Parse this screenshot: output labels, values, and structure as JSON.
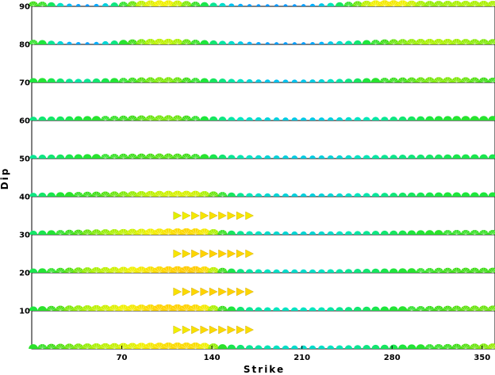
{
  "chart_data": {
    "type": "scatter",
    "title": "",
    "xlabel": "Strike",
    "ylabel": "Dip",
    "xlim": [
      0,
      360
    ],
    "ylim": [
      0,
      90
    ],
    "xticks": [
      70,
      140,
      210,
      280,
      350
    ],
    "yticks": [
      10,
      20,
      30,
      40,
      50,
      60,
      70,
      80,
      90
    ],
    "grid": "horizontal lines at each dip row",
    "legend": "none",
    "rows": [
      {
        "dip": 0,
        "fit": [
          0.55,
          0.58,
          0.62,
          0.64,
          0.66,
          0.68,
          0.7,
          0.72,
          0.74,
          0.75,
          0.77,
          0.78,
          0.8,
          0.82,
          0.84,
          0.85,
          0.86,
          0.86,
          0.85,
          0.8,
          0.7,
          0.55,
          0.48,
          0.44,
          0.4,
          0.38,
          0.36,
          0.34,
          0.33,
          0.32,
          0.32,
          0.32,
          0.33,
          0.34,
          0.36,
          0.38,
          0.4,
          0.42,
          0.44,
          0.46,
          0.48,
          0.5,
          0.52,
          0.54,
          0.56,
          0.58,
          0.6,
          0.62,
          0.64,
          0.66,
          0.68,
          0.7
        ]
      },
      {
        "dip": 5,
        "fit": [
          0,
          0,
          0,
          0,
          0,
          0,
          0,
          0,
          0,
          0,
          0,
          0,
          0,
          0,
          0,
          0,
          0.8,
          0.82,
          0.84,
          0.86,
          0.86,
          0.86,
          0.86,
          0.86,
          0.85,
          0,
          0,
          0,
          0,
          0,
          0,
          0,
          0,
          0,
          0,
          0,
          0,
          0,
          0,
          0,
          0,
          0,
          0,
          0,
          0,
          0,
          0,
          0,
          0,
          0,
          0,
          0
        ]
      },
      {
        "dip": 10,
        "fit": [
          0.5,
          0.55,
          0.6,
          0.64,
          0.68,
          0.7,
          0.72,
          0.74,
          0.76,
          0.78,
          0.8,
          0.82,
          0.84,
          0.86,
          0.88,
          0.88,
          0.88,
          0.88,
          0.86,
          0.82,
          0.72,
          0.6,
          0.5,
          0.44,
          0.4,
          0.38,
          0.36,
          0.35,
          0.34,
          0.34,
          0.34,
          0.35,
          0.36,
          0.38,
          0.4,
          0.42,
          0.44,
          0.46,
          0.48,
          0.5,
          0.52,
          0.54,
          0.56,
          0.58,
          0.6,
          0.62,
          0.63,
          0.64,
          0.65,
          0.66,
          0.66,
          0.66
        ]
      },
      {
        "dip": 15,
        "fit": [
          0,
          0,
          0,
          0,
          0,
          0,
          0,
          0,
          0,
          0,
          0,
          0,
          0,
          0,
          0,
          0,
          0.84,
          0.86,
          0.87,
          0.88,
          0.88,
          0.88,
          0.88,
          0.88,
          0.87,
          0,
          0,
          0,
          0,
          0,
          0,
          0,
          0,
          0,
          0,
          0,
          0,
          0,
          0,
          0,
          0,
          0,
          0,
          0,
          0,
          0,
          0,
          0,
          0,
          0,
          0,
          0
        ]
      },
      {
        "dip": 20,
        "fit": [
          0.48,
          0.52,
          0.56,
          0.6,
          0.64,
          0.67,
          0.7,
          0.72,
          0.74,
          0.76,
          0.78,
          0.8,
          0.82,
          0.84,
          0.86,
          0.88,
          0.89,
          0.9,
          0.9,
          0.86,
          0.74,
          0.6,
          0.48,
          0.42,
          0.38,
          0.36,
          0.34,
          0.33,
          0.32,
          0.32,
          0.32,
          0.33,
          0.34,
          0.36,
          0.38,
          0.4,
          0.42,
          0.44,
          0.46,
          0.48,
          0.5,
          0.52,
          0.54,
          0.56,
          0.58,
          0.6,
          0.61,
          0.62,
          0.62,
          0.62,
          0.62,
          0.62
        ]
      },
      {
        "dip": 25,
        "fit": [
          0,
          0,
          0,
          0,
          0,
          0,
          0,
          0,
          0,
          0,
          0,
          0,
          0,
          0,
          0,
          0,
          0.83,
          0.85,
          0.87,
          0.88,
          0.88,
          0.88,
          0.88,
          0.87,
          0.86,
          0,
          0,
          0,
          0,
          0,
          0,
          0,
          0,
          0,
          0,
          0,
          0,
          0,
          0,
          0,
          0,
          0,
          0,
          0,
          0,
          0,
          0,
          0,
          0,
          0,
          0,
          0
        ]
      },
      {
        "dip": 30,
        "fit": [
          0.45,
          0.48,
          0.52,
          0.56,
          0.6,
          0.63,
          0.66,
          0.68,
          0.7,
          0.72,
          0.74,
          0.76,
          0.78,
          0.8,
          0.82,
          0.84,
          0.86,
          0.87,
          0.86,
          0.82,
          0.72,
          0.58,
          0.46,
          0.4,
          0.36,
          0.34,
          0.32,
          0.31,
          0.3,
          0.3,
          0.3,
          0.3,
          0.31,
          0.32,
          0.34,
          0.36,
          0.38,
          0.4,
          0.42,
          0.44,
          0.46,
          0.48,
          0.5,
          0.52,
          0.54,
          0.55,
          0.56,
          0.57,
          0.58,
          0.58,
          0.58,
          0.58
        ]
      },
      {
        "dip": 35,
        "fit": [
          0,
          0,
          0,
          0,
          0,
          0,
          0,
          0,
          0,
          0,
          0,
          0,
          0,
          0,
          0,
          0,
          0.78,
          0.8,
          0.82,
          0.83,
          0.84,
          0.84,
          0.84,
          0.83,
          0.82,
          0,
          0,
          0,
          0,
          0,
          0,
          0,
          0,
          0,
          0,
          0,
          0,
          0,
          0,
          0,
          0,
          0,
          0,
          0,
          0,
          0,
          0,
          0,
          0,
          0,
          0,
          0
        ]
      },
      {
        "dip": 40,
        "fit": [
          0.42,
          0.45,
          0.48,
          0.52,
          0.55,
          0.58,
          0.6,
          0.62,
          0.64,
          0.66,
          0.68,
          0.7,
          0.72,
          0.74,
          0.75,
          0.76,
          0.77,
          0.77,
          0.76,
          0.72,
          0.66,
          0.56,
          0.46,
          0.4,
          0.36,
          0.33,
          0.31,
          0.3,
          0.29,
          0.28,
          0.28,
          0.28,
          0.29,
          0.3,
          0.31,
          0.33,
          0.35,
          0.37,
          0.39,
          0.41,
          0.43,
          0.45,
          0.46,
          0.47,
          0.48,
          0.49,
          0.5,
          0.5,
          0.5,
          0.5,
          0.5,
          0.5
        ]
      },
      {
        "dip": 50,
        "fit": [
          0.4,
          0.42,
          0.44,
          0.46,
          0.48,
          0.5,
          0.52,
          0.54,
          0.56,
          0.58,
          0.6,
          0.61,
          0.62,
          0.63,
          0.64,
          0.64,
          0.63,
          0.62,
          0.58,
          0.54,
          0.48,
          0.44,
          0.4,
          0.37,
          0.34,
          0.32,
          0.3,
          0.29,
          0.28,
          0.27,
          0.27,
          0.27,
          0.28,
          0.29,
          0.3,
          0.32,
          0.34,
          0.36,
          0.38,
          0.4,
          0.41,
          0.42,
          0.43,
          0.44,
          0.45,
          0.46,
          0.47,
          0.48,
          0.48,
          0.48,
          0.48,
          0.48
        ]
      },
      {
        "dip": 60,
        "fit": [
          0.42,
          0.44,
          0.45,
          0.46,
          0.48,
          0.5,
          0.52,
          0.54,
          0.56,
          0.58,
          0.6,
          0.62,
          0.64,
          0.66,
          0.67,
          0.67,
          0.66,
          0.62,
          0.56,
          0.5,
          0.46,
          0.42,
          0.38,
          0.35,
          0.33,
          0.31,
          0.29,
          0.28,
          0.27,
          0.26,
          0.26,
          0.26,
          0.27,
          0.28,
          0.3,
          0.32,
          0.34,
          0.36,
          0.38,
          0.4,
          0.42,
          0.44,
          0.46,
          0.48,
          0.5,
          0.51,
          0.52,
          0.53,
          0.54,
          0.54,
          0.54,
          0.54
        ]
      },
      {
        "dip": 70,
        "fit": [
          0.5,
          0.52,
          0.48,
          0.44,
          0.4,
          0.38,
          0.4,
          0.44,
          0.48,
          0.52,
          0.56,
          0.6,
          0.64,
          0.66,
          0.68,
          0.68,
          0.66,
          0.62,
          0.56,
          0.5,
          0.46,
          0.42,
          0.38,
          0.34,
          0.3,
          0.27,
          0.25,
          0.24,
          0.24,
          0.24,
          0.25,
          0.27,
          0.3,
          0.34,
          0.38,
          0.42,
          0.46,
          0.5,
          0.54,
          0.58,
          0.6,
          0.62,
          0.64,
          0.66,
          0.67,
          0.68,
          0.68,
          0.68,
          0.66,
          0.64,
          0.62,
          0.6
        ]
      },
      {
        "dip": 80,
        "fit": [
          0.56,
          0.5,
          0.4,
          0.3,
          0.2,
          0.15,
          0.12,
          0.18,
          0.3,
          0.42,
          0.54,
          0.62,
          0.68,
          0.72,
          0.74,
          0.74,
          0.72,
          0.66,
          0.58,
          0.5,
          0.44,
          0.38,
          0.32,
          0.26,
          0.2,
          0.15,
          0.12,
          0.12,
          0.12,
          0.12,
          0.12,
          0.15,
          0.2,
          0.26,
          0.32,
          0.38,
          0.44,
          0.5,
          0.56,
          0.62,
          0.66,
          0.68,
          0.7,
          0.71,
          0.72,
          0.72,
          0.72,
          0.71,
          0.7,
          0.69,
          0.68,
          0.68
        ]
      },
      {
        "dip": 90,
        "fit": [
          0.62,
          0.58,
          0.46,
          0.34,
          0.22,
          0.14,
          0.1,
          0.16,
          0.28,
          0.42,
          0.56,
          0.66,
          0.74,
          0.78,
          0.8,
          0.8,
          0.76,
          0.68,
          0.58,
          0.48,
          0.4,
          0.32,
          0.24,
          0.18,
          0.12,
          0.1,
          0.1,
          0.1,
          0.1,
          0.1,
          0.12,
          0.18,
          0.26,
          0.36,
          0.46,
          0.56,
          0.66,
          0.74,
          0.8,
          0.82,
          0.82,
          0.8,
          0.76,
          0.72,
          0.7,
          0.7,
          0.71,
          0.72,
          0.72,
          0.72,
          0.72,
          0.72
        ]
      }
    ],
    "strike_values": [
      0,
      7,
      14,
      21,
      28,
      35,
      42,
      49,
      56,
      63,
      70,
      77,
      84,
      91,
      98,
      105,
      112,
      119,
      126,
      133,
      140,
      147,
      154,
      161,
      168,
      175,
      182,
      189,
      196,
      203,
      210,
      217,
      224,
      231,
      238,
      245,
      252,
      259,
      266,
      273,
      280,
      287,
      294,
      301,
      308,
      315,
      322,
      329,
      336,
      343,
      350,
      357
    ]
  }
}
